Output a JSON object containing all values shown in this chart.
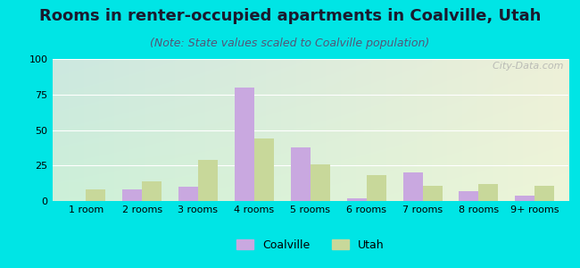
{
  "title": "Rooms in renter-occupied apartments in Coalville, Utah",
  "subtitle": "(Note: State values scaled to Coalville population)",
  "categories": [
    "1 room",
    "2 rooms",
    "3 rooms",
    "4 rooms",
    "5 rooms",
    "6 rooms",
    "7 rooms",
    "8 rooms",
    "9+ rooms"
  ],
  "coalville": [
    0,
    8,
    10,
    80,
    38,
    2,
    20,
    7,
    4
  ],
  "utah": [
    8,
    14,
    29,
    44,
    26,
    18,
    11,
    12,
    11
  ],
  "coalville_color": "#c9a8e0",
  "utah_color": "#c8d89a",
  "background_color": "#00e5e5",
  "grad_top_left": "#cce8e0",
  "grad_bottom_right": "#eef5d8",
  "ylim": [
    0,
    100
  ],
  "yticks": [
    0,
    25,
    50,
    75,
    100
  ],
  "title_fontsize": 13,
  "subtitle_fontsize": 9,
  "legend_fontsize": 9,
  "tick_fontsize": 8,
  "bar_width": 0.35,
  "watermark": "  City-Data.com"
}
